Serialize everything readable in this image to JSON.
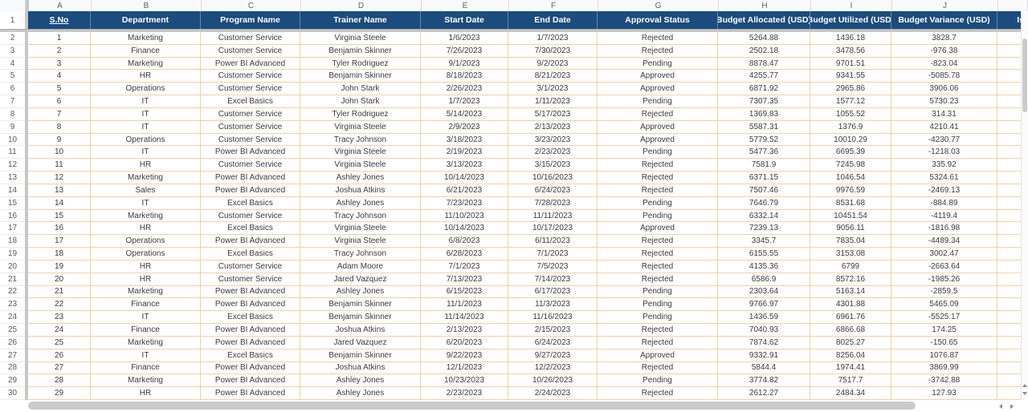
{
  "colors": {
    "header_bg": "#1C4B7D",
    "header_sep": "#6686A9",
    "grid": "#EDD3A7",
    "freeze": "#C7C7C7",
    "thumb": "#CBCBCB"
  },
  "sheet": {
    "header_row_number": "1",
    "columns": [
      {
        "letter": "A",
        "label": "S.No",
        "underline": true
      },
      {
        "letter": "B",
        "label": "Department"
      },
      {
        "letter": "C",
        "label": "Program Name"
      },
      {
        "letter": "D",
        "label": "Trainer Name"
      },
      {
        "letter": "E",
        "label": "Start Date"
      },
      {
        "letter": "F",
        "label": "End Date"
      },
      {
        "letter": "G",
        "label": "Approval Status"
      },
      {
        "letter": "H",
        "label": "Budget Allocated (USD)"
      },
      {
        "letter": "I",
        "label": "Budget Utilized (USD)"
      },
      {
        "letter": "J",
        "label": "Budget Variance (USD)"
      },
      {
        "letter": "",
        "label": "Is",
        "clipped": true
      }
    ],
    "rows": [
      {
        "n": "2",
        "cells": [
          "1",
          "Marketing",
          "Customer Service",
          "Virginia Steele",
          "1/6/2023",
          "1/7/2023",
          "Rejected",
          "5264.88",
          "1436.18",
          "3828.7",
          ""
        ]
      },
      {
        "n": "3",
        "cells": [
          "2",
          "Finance",
          "Customer Service",
          "Benjamin Skinner",
          "7/26/2023",
          "7/30/2023",
          "Rejected",
          "2502.18",
          "3478.56",
          "-976.38",
          ""
        ]
      },
      {
        "n": "4",
        "cells": [
          "3",
          "Marketing",
          "Power BI Advanced",
          "Tyler Rodriguez",
          "9/1/2023",
          "9/2/2023",
          "Pending",
          "8878.47",
          "9701.51",
          "-823.04",
          ""
        ]
      },
      {
        "n": "5",
        "cells": [
          "4",
          "HR",
          "Customer Service",
          "Benjamin Skinner",
          "8/18/2023",
          "8/21/2023",
          "Approved",
          "4255.77",
          "9341.55",
          "-5085.78",
          ""
        ]
      },
      {
        "n": "6",
        "cells": [
          "5",
          "Operations",
          "Customer Service",
          "John Stark",
          "2/26/2023",
          "3/1/2023",
          "Approved",
          "6871.92",
          "2965.86",
          "3906.06",
          ""
        ]
      },
      {
        "n": "7",
        "cells": [
          "6",
          "IT",
          "Excel Basics",
          "John Stark",
          "1/7/2023",
          "1/11/2023",
          "Pending",
          "7307.35",
          "1577.12",
          "5730.23",
          ""
        ]
      },
      {
        "n": "8",
        "cells": [
          "7",
          "IT",
          "Customer Service",
          "Tyler Rodriguez",
          "5/14/2023",
          "5/17/2023",
          "Rejected",
          "1369.83",
          "1055.52",
          "314.31",
          ""
        ]
      },
      {
        "n": "9",
        "cells": [
          "8",
          "IT",
          "Customer Service",
          "Virginia Steele",
          "2/9/2023",
          "2/13/2023",
          "Approved",
          "5587.31",
          "1376.9",
          "4210.41",
          ""
        ]
      },
      {
        "n": "10",
        "cells": [
          "9",
          "Operations",
          "Customer Service",
          "Tracy Johnson",
          "3/18/2023",
          "3/23/2023",
          "Approved",
          "5779.52",
          "10010.29",
          "-4230.77",
          ""
        ]
      },
      {
        "n": "11",
        "cells": [
          "10",
          "IT",
          "Power BI Advanced",
          "Virginia Steele",
          "2/19/2023",
          "2/23/2023",
          "Pending",
          "5477.36",
          "6695.39",
          "-1218.03",
          ""
        ]
      },
      {
        "n": "12",
        "cells": [
          "11",
          "HR",
          "Customer Service",
          "Virginia Steele",
          "3/13/2023",
          "3/15/2023",
          "Rejected",
          "7581.9",
          "7245.98",
          "335.92",
          ""
        ]
      },
      {
        "n": "13",
        "cells": [
          "12",
          "Marketing",
          "Power BI Advanced",
          "Ashley Jones",
          "10/14/2023",
          "10/16/2023",
          "Rejected",
          "6371.15",
          "1046.54",
          "5324.61",
          ""
        ]
      },
      {
        "n": "14",
        "cells": [
          "13",
          "Sales",
          "Power BI Advanced",
          "Joshua Atkins",
          "6/21/2023",
          "6/24/2023",
          "Rejected",
          "7507.46",
          "9976.59",
          "-2469.13",
          ""
        ]
      },
      {
        "n": "15",
        "cells": [
          "14",
          "IT",
          "Excel Basics",
          "Ashley Jones",
          "7/23/2023",
          "7/28/2023",
          "Pending",
          "7646.79",
          "8531.68",
          "-884.89",
          ""
        ]
      },
      {
        "n": "16",
        "cells": [
          "15",
          "Marketing",
          "Customer Service",
          "Tracy Johnson",
          "11/10/2023",
          "11/11/2023",
          "Pending",
          "6332.14",
          "10451.54",
          "-4119.4",
          ""
        ]
      },
      {
        "n": "17",
        "cells": [
          "16",
          "HR",
          "Excel Basics",
          "Virginia Steele",
          "10/14/2023",
          "10/17/2023",
          "Approved",
          "7239.13",
          "9056.11",
          "-1816.98",
          ""
        ]
      },
      {
        "n": "18",
        "cells": [
          "17",
          "Operations",
          "Power BI Advanced",
          "Virginia Steele",
          "6/8/2023",
          "6/11/2023",
          "Rejected",
          "3345.7",
          "7835.04",
          "-4489.34",
          ""
        ]
      },
      {
        "n": "19",
        "cells": [
          "18",
          "Operations",
          "Excel Basics",
          "Tracy Johnson",
          "6/28/2023",
          "7/1/2023",
          "Rejected",
          "6155.55",
          "3153.08",
          "3002.47",
          ""
        ]
      },
      {
        "n": "20",
        "cells": [
          "19",
          "HR",
          "Customer Service",
          "Adam Moore",
          "7/1/2023",
          "7/5/2023",
          "Rejected",
          "4135.36",
          "6799",
          "-2663.64",
          ""
        ]
      },
      {
        "n": "21",
        "cells": [
          "20",
          "HR",
          "Customer Service",
          "Jared Vazquez",
          "7/13/2023",
          "7/14/2023",
          "Rejected",
          "6586.9",
          "8572.16",
          "-1985.26",
          ""
        ]
      },
      {
        "n": "22",
        "cells": [
          "21",
          "Marketing",
          "Power BI Advanced",
          "Ashley Jones",
          "6/15/2023",
          "6/17/2023",
          "Pending",
          "2303.64",
          "5163.14",
          "-2859.5",
          ""
        ]
      },
      {
        "n": "23",
        "cells": [
          "22",
          "Finance",
          "Power BI Advanced",
          "Benjamin Skinner",
          "11/1/2023",
          "11/3/2023",
          "Pending",
          "9766.97",
          "4301.88",
          "5465.09",
          ""
        ]
      },
      {
        "n": "24",
        "cells": [
          "23",
          "IT",
          "Excel Basics",
          "Benjamin Skinner",
          "11/14/2023",
          "11/16/2023",
          "Pending",
          "1436.59",
          "6961.76",
          "-5525.17",
          ""
        ]
      },
      {
        "n": "25",
        "cells": [
          "24",
          "Finance",
          "Power BI Advanced",
          "Joshua Atkins",
          "2/13/2023",
          "2/15/2023",
          "Rejected",
          "7040.93",
          "6866.68",
          "174.25",
          ""
        ]
      },
      {
        "n": "26",
        "cells": [
          "25",
          "Marketing",
          "Power BI Advanced",
          "Jared Vazquez",
          "6/20/2023",
          "6/24/2023",
          "Rejected",
          "7874.62",
          "8025.27",
          "-150.65",
          ""
        ]
      },
      {
        "n": "27",
        "cells": [
          "26",
          "IT",
          "Excel Basics",
          "Benjamin Skinner",
          "9/22/2023",
          "9/27/2023",
          "Approved",
          "9332.91",
          "8256.04",
          "1076.87",
          ""
        ]
      },
      {
        "n": "28",
        "cells": [
          "27",
          "Finance",
          "Power BI Advanced",
          "Joshua Atkins",
          "12/1/2023",
          "12/2/2023",
          "Rejected",
          "5844.4",
          "1974.41",
          "3869.99",
          ""
        ]
      },
      {
        "n": "29",
        "cells": [
          "28",
          "Marketing",
          "Power BI Advanced",
          "Ashley Jones",
          "10/23/2023",
          "10/26/2023",
          "Pending",
          "3774.82",
          "7517.7",
          "-3742.88",
          ""
        ]
      },
      {
        "n": "30",
        "cells": [
          "29",
          "HR",
          "Power BI Advanced",
          "Ashley Jones",
          "2/23/2023",
          "2/24/2023",
          "Rejected",
          "2612.27",
          "2484.34",
          "127.93",
          ""
        ]
      }
    ]
  }
}
